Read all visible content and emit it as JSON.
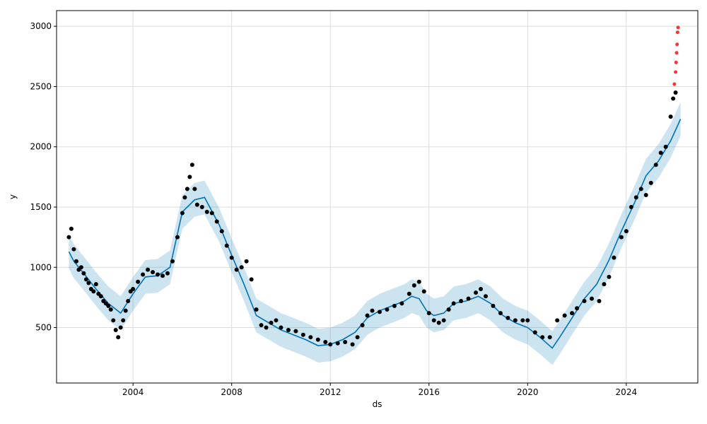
{
  "chart_data": {
    "type": "scatter",
    "title": "",
    "xlabel": "ds",
    "ylabel": "y",
    "xlim": [
      2000.9,
      2026.9
    ],
    "ylim": [
      40,
      3130
    ],
    "grid": true,
    "x_ticks": [
      2004,
      2008,
      2012,
      2016,
      2020,
      2024
    ],
    "x_tick_labels": [
      "2004",
      "2008",
      "2012",
      "2016",
      "2020",
      "2024"
    ],
    "y_ticks": [
      500,
      1000,
      1500,
      2000,
      2500,
      3000
    ],
    "y_tick_labels": [
      "500",
      "1000",
      "1500",
      "2000",
      "2500",
      "3000"
    ],
    "colors": {
      "observed": "#000000",
      "forecast_line": "#0072B2",
      "uncertainty_band": "#0072B2",
      "anomaly": "#FF0000",
      "grid": "#dddddd"
    },
    "series": [
      {
        "name": "",
        "role": "observed",
        "points": [
          [
            2001.4,
            1250
          ],
          [
            2001.5,
            1320
          ],
          [
            2001.6,
            1150
          ],
          [
            2001.7,
            1050
          ],
          [
            2001.8,
            980
          ],
          [
            2001.9,
            1000
          ],
          [
            2002.0,
            950
          ],
          [
            2002.1,
            900
          ],
          [
            2002.2,
            870
          ],
          [
            2002.3,
            820
          ],
          [
            2002.4,
            800
          ],
          [
            2002.5,
            860
          ],
          [
            2002.6,
            780
          ],
          [
            2002.7,
            760
          ],
          [
            2002.8,
            720
          ],
          [
            2002.9,
            700
          ],
          [
            2003.0,
            680
          ],
          [
            2003.1,
            650
          ],
          [
            2003.2,
            560
          ],
          [
            2003.3,
            480
          ],
          [
            2003.4,
            420
          ],
          [
            2003.5,
            500
          ],
          [
            2003.6,
            560
          ],
          [
            2003.7,
            640
          ],
          [
            2003.8,
            720
          ],
          [
            2003.9,
            800
          ],
          [
            2004.0,
            820
          ],
          [
            2004.2,
            880
          ],
          [
            2004.4,
            940
          ],
          [
            2004.6,
            980
          ],
          [
            2004.8,
            960
          ],
          [
            2005.0,
            940
          ],
          [
            2005.2,
            930
          ],
          [
            2005.4,
            950
          ],
          [
            2005.6,
            1050
          ],
          [
            2005.8,
            1250
          ],
          [
            2006.0,
            1450
          ],
          [
            2006.1,
            1580
          ],
          [
            2006.2,
            1650
          ],
          [
            2006.3,
            1750
          ],
          [
            2006.4,
            1850
          ],
          [
            2006.5,
            1650
          ],
          [
            2006.6,
            1520
          ],
          [
            2006.8,
            1500
          ],
          [
            2007.0,
            1460
          ],
          [
            2007.2,
            1450
          ],
          [
            2007.4,
            1380
          ],
          [
            2007.6,
            1300
          ],
          [
            2007.8,
            1180
          ],
          [
            2008.0,
            1080
          ],
          [
            2008.2,
            980
          ],
          [
            2008.4,
            1000
          ],
          [
            2008.6,
            1050
          ],
          [
            2008.8,
            900
          ],
          [
            2009.0,
            650
          ],
          [
            2009.2,
            520
          ],
          [
            2009.4,
            500
          ],
          [
            2009.6,
            540
          ],
          [
            2009.8,
            560
          ],
          [
            2010.0,
            500
          ],
          [
            2010.3,
            480
          ],
          [
            2010.6,
            470
          ],
          [
            2010.9,
            440
          ],
          [
            2011.2,
            420
          ],
          [
            2011.5,
            400
          ],
          [
            2011.8,
            380
          ],
          [
            2012.0,
            360
          ],
          [
            2012.3,
            370
          ],
          [
            2012.6,
            380
          ],
          [
            2012.9,
            360
          ],
          [
            2013.1,
            420
          ],
          [
            2013.3,
            520
          ],
          [
            2013.5,
            600
          ],
          [
            2013.7,
            640
          ],
          [
            2014.0,
            630
          ],
          [
            2014.3,
            650
          ],
          [
            2014.6,
            680
          ],
          [
            2014.9,
            700
          ],
          [
            2015.2,
            780
          ],
          [
            2015.4,
            850
          ],
          [
            2015.6,
            880
          ],
          [
            2015.8,
            800
          ],
          [
            2016.0,
            620
          ],
          [
            2016.2,
            560
          ],
          [
            2016.4,
            540
          ],
          [
            2016.6,
            560
          ],
          [
            2016.8,
            650
          ],
          [
            2017.0,
            700
          ],
          [
            2017.3,
            720
          ],
          [
            2017.6,
            740
          ],
          [
            2017.9,
            790
          ],
          [
            2018.1,
            820
          ],
          [
            2018.3,
            760
          ],
          [
            2018.6,
            680
          ],
          [
            2018.9,
            620
          ],
          [
            2019.2,
            580
          ],
          [
            2019.5,
            560
          ],
          [
            2019.8,
            560
          ],
          [
            2020.0,
            560
          ],
          [
            2020.3,
            460
          ],
          [
            2020.6,
            420
          ],
          [
            2020.9,
            420
          ],
          [
            2021.2,
            560
          ],
          [
            2021.5,
            600
          ],
          [
            2021.8,
            620
          ],
          [
            2022.0,
            660
          ],
          [
            2022.3,
            720
          ],
          [
            2022.6,
            740
          ],
          [
            2022.9,
            720
          ],
          [
            2023.1,
            860
          ],
          [
            2023.3,
            920
          ],
          [
            2023.5,
            1080
          ],
          [
            2023.8,
            1250
          ],
          [
            2024.0,
            1300
          ],
          [
            2024.2,
            1500
          ],
          [
            2024.4,
            1580
          ],
          [
            2024.6,
            1650
          ],
          [
            2024.8,
            1600
          ],
          [
            2025.0,
            1700
          ],
          [
            2025.2,
            1850
          ],
          [
            2025.4,
            1950
          ],
          [
            2025.6,
            2000
          ],
          [
            2025.8,
            2250
          ],
          [
            2025.9,
            2400
          ],
          [
            2026.0,
            2450
          ]
        ]
      },
      {
        "name": "",
        "role": "forecast_line",
        "points": [
          [
            2001.4,
            1130
          ],
          [
            2001.6,
            1050
          ],
          [
            2002.0,
            950
          ],
          [
            2002.5,
            820
          ],
          [
            2003.0,
            700
          ],
          [
            2003.5,
            620
          ],
          [
            2004.0,
            780
          ],
          [
            2004.5,
            920
          ],
          [
            2005.0,
            930
          ],
          [
            2005.5,
            1000
          ],
          [
            2006.0,
            1460
          ],
          [
            2006.5,
            1560
          ],
          [
            2006.9,
            1580
          ],
          [
            2007.5,
            1350
          ],
          [
            2008.0,
            1100
          ],
          [
            2008.5,
            860
          ],
          [
            2009.0,
            600
          ],
          [
            2009.5,
            540
          ],
          [
            2010.0,
            480
          ],
          [
            2010.5,
            440
          ],
          [
            2011.0,
            400
          ],
          [
            2011.5,
            350
          ],
          [
            2012.0,
            360
          ],
          [
            2012.5,
            400
          ],
          [
            2013.0,
            460
          ],
          [
            2013.5,
            580
          ],
          [
            2014.0,
            640
          ],
          [
            2014.5,
            680
          ],
          [
            2015.0,
            720
          ],
          [
            2015.3,
            760
          ],
          [
            2015.6,
            740
          ],
          [
            2015.9,
            640
          ],
          [
            2016.2,
            600
          ],
          [
            2016.6,
            620
          ],
          [
            2017.0,
            700
          ],
          [
            2017.5,
            720
          ],
          [
            2018.0,
            760
          ],
          [
            2018.5,
            700
          ],
          [
            2019.0,
            600
          ],
          [
            2019.5,
            540
          ],
          [
            2020.0,
            500
          ],
          [
            2020.5,
            420
          ],
          [
            2021.0,
            330
          ],
          [
            2021.3,
            420
          ],
          [
            2021.8,
            580
          ],
          [
            2022.3,
            740
          ],
          [
            2022.8,
            860
          ],
          [
            2023.3,
            1060
          ],
          [
            2023.8,
            1300
          ],
          [
            2024.3,
            1520
          ],
          [
            2024.8,
            1760
          ],
          [
            2025.3,
            1880
          ],
          [
            2025.8,
            2050
          ],
          [
            2026.2,
            2230
          ]
        ]
      },
      {
        "name": "",
        "role": "uncertainty_band",
        "points": []
      },
      {
        "name": "",
        "role": "anomaly",
        "points": [
          [
            2025.95,
            2520
          ],
          [
            2026.0,
            2620
          ],
          [
            2026.02,
            2700
          ],
          [
            2026.04,
            2780
          ],
          [
            2026.06,
            2850
          ],
          [
            2026.08,
            2950
          ],
          [
            2026.1,
            2990
          ]
        ]
      }
    ],
    "uncertainty_band_halfwidth": 140
  }
}
